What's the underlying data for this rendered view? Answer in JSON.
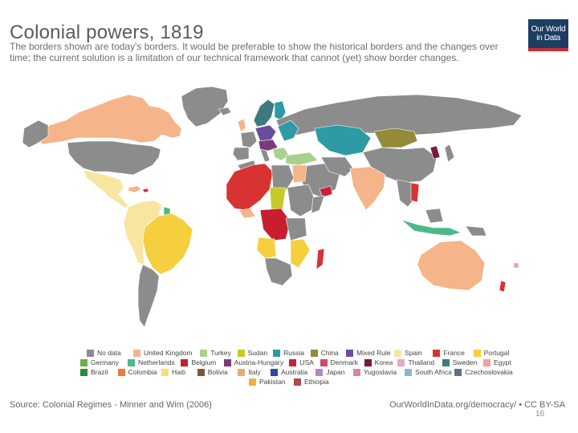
{
  "title": "Colonial powers, 1819",
  "subtitle": "The borders shown are today's borders. It would be preferable to show the historical borders and the changes over time; the current solution is a limitation of our technical framework that cannot (yet) show border changes.",
  "logo": {
    "line1": "Our World",
    "line2": "in Data"
  },
  "colors": {
    "no_data": "#8c8c8c",
    "united_kingdom": "#f5b48a",
    "turkey": "#a9d18e",
    "sudan": "#c7c92a",
    "russia": "#2e9aa6",
    "china": "#938a3a",
    "mixed_rule": "#6a4c9c",
    "spain": "#f8e6a0",
    "france": "#d93232",
    "portugal": "#f5cf3d",
    "germany": "#6ab04c",
    "netherlands": "#4cb88a",
    "belgium": "#c81e2e",
    "austria_hungary": "#7a3a7a",
    "usa": "#c9203a",
    "denmark": "#d0486a",
    "korea": "#7a1a3a",
    "thailand": "#e3a8c8",
    "sweden": "#3d7a80",
    "egypt": "#f0a0a0",
    "brazil": "#2e8a3a",
    "colombia": "#f07a3a",
    "haiti": "#f5e07a",
    "bolivia": "#7a5a3a",
    "italy": "#e0b070",
    "australia": "#2a4aa0",
    "japan": "#b08ac0",
    "yugoslavia": "#d08aa0",
    "south_africa": "#8ab8d0",
    "czechoslovakia": "#607080",
    "pakistan": "#f0b040",
    "ethiopia": "#b04a4a"
  },
  "legend": {
    "rows": [
      [
        {
          "label": "No data",
          "color": "#8c8c8c"
        },
        {
          "label": "United Kingdom",
          "color": "#f5b48a"
        },
        {
          "label": "Turkey",
          "color": "#a9d18e"
        },
        {
          "label": "Sudan",
          "color": "#c7c92a"
        },
        {
          "label": "Russia",
          "color": "#2e9aa6"
        },
        {
          "label": "China",
          "color": "#938a3a"
        },
        {
          "label": "Mixed Rule",
          "color": "#6a4c9c"
        },
        {
          "label": "Spain",
          "color": "#f8e6a0"
        },
        {
          "label": "France",
          "color": "#d93232"
        },
        {
          "label": "Portugal",
          "color": "#f5cf3d"
        }
      ],
      [
        {
          "label": "Germany",
          "color": "#6ab04c"
        },
        {
          "label": "Netherlands",
          "color": "#4cb88a"
        },
        {
          "label": "Belgium",
          "color": "#c81e2e"
        },
        {
          "label": "Austria-Hungary",
          "color": "#7a3a7a"
        },
        {
          "label": "USA",
          "color": "#c9203a"
        },
        {
          "label": "Denmark",
          "color": "#d0486a"
        },
        {
          "label": "Korea",
          "color": "#7a1a3a"
        },
        {
          "label": "Thailand",
          "color": "#e3a8c8"
        },
        {
          "label": "Sweden",
          "color": "#3d7a80"
        },
        {
          "label": "Egypt",
          "color": "#f0a0a0"
        }
      ],
      [
        {
          "label": "Brazil",
          "color": "#2e8a3a"
        },
        {
          "label": "Colombia",
          "color": "#f07a3a"
        },
        {
          "label": "Haiti",
          "color": "#f5e07a"
        },
        {
          "label": "Bolivia",
          "color": "#7a5a3a"
        },
        {
          "label": "Italy",
          "color": "#e0b070"
        },
        {
          "label": "Australia",
          "color": "#2a4aa0"
        },
        {
          "label": "Japan",
          "color": "#b08ac0"
        },
        {
          "label": "Yugoslavia",
          "color": "#d08aa0"
        },
        {
          "label": "South Africa",
          "color": "#8ab8d0"
        },
        {
          "label": "Czechoslovakia",
          "color": "#607080"
        }
      ],
      [
        {
          "label": "Pakistan",
          "color": "#f0b040"
        },
        {
          "label": "Ethiopia",
          "color": "#b04a4a"
        }
      ]
    ]
  },
  "source": "Source: Colonial Regimes - Minner and Wim (2006)",
  "license": "OurWorldInData.org/democracy/ • CC BY-SA",
  "page_number": "16"
}
